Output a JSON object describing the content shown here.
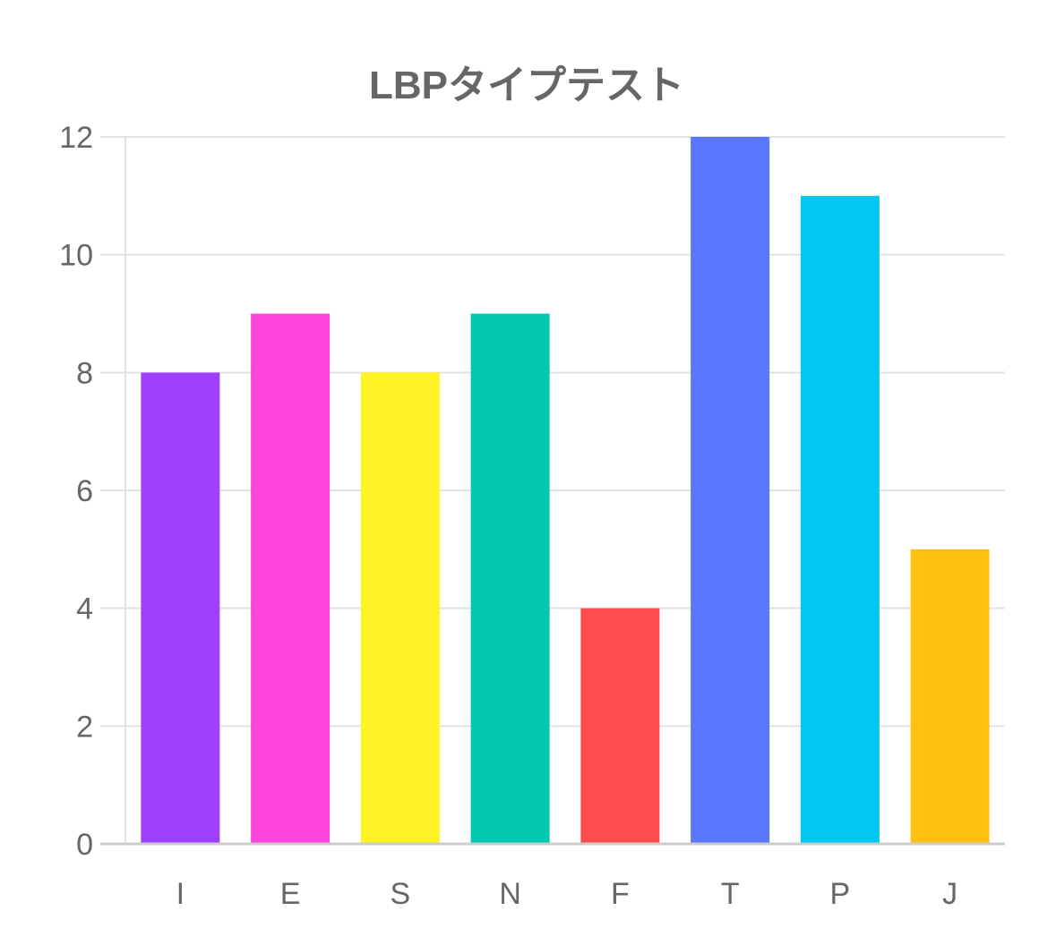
{
  "chart_data": {
    "type": "bar",
    "title": "LBPタイプテスト",
    "xlabel": "",
    "ylabel": "",
    "categories": [
      "I",
      "E",
      "S",
      "N",
      "F",
      "T",
      "P",
      "J"
    ],
    "values": [
      8,
      9,
      8,
      9,
      4,
      12,
      11,
      5
    ],
    "colors": [
      "#a040ff",
      "#ff44dd",
      "#fff222",
      "#00c8b0",
      "#ff4d4f",
      "#5b76ff",
      "#00c8f0",
      "#ffc010"
    ],
    "ylim": [
      0,
      12
    ],
    "yticks": [
      0,
      2,
      4,
      6,
      8,
      10,
      12
    ],
    "grid": true,
    "legend": "none"
  }
}
